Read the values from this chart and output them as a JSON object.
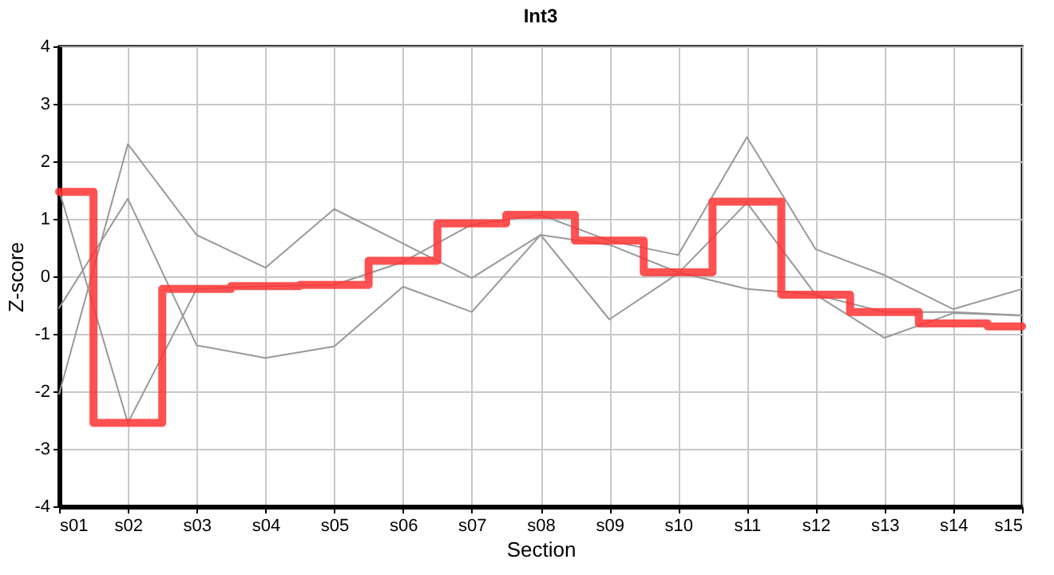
{
  "chart_data": {
    "type": "line",
    "title": "Int3",
    "xlabel": "Section",
    "ylabel": "Z-score",
    "categories": [
      "s01",
      "s02",
      "s03",
      "s04",
      "s05",
      "s06",
      "s07",
      "s08",
      "s09",
      "s10",
      "s11",
      "s12",
      "s13",
      "s14",
      "s15"
    ],
    "series": [
      {
        "color": "#999999",
        "values": [
          1.5,
          -2.55,
          -0.22,
          -0.17,
          -0.15,
          0.25,
          0.9,
          1.07,
          0.62,
          0.37,
          2.42,
          0.47,
          0.02,
          -0.57,
          -0.22
        ]
      },
      {
        "color": "#999999",
        "values": [
          -2.05,
          2.3,
          0.72,
          0.15,
          1.17,
          0.57,
          -0.03,
          0.72,
          -0.75,
          0.05,
          1.28,
          -0.32,
          -1.07,
          -0.64,
          -0.68
        ]
      },
      {
        "color": "#999999",
        "values": [
          -0.55,
          1.35,
          -1.2,
          -1.42,
          -1.22,
          -0.18,
          -0.62,
          0.72,
          0.55,
          0.07,
          -0.22,
          -0.32,
          -0.62,
          -0.62,
          -0.68
        ]
      },
      {
        "type": "step",
        "color": "#ff3333",
        "values": [
          1.47,
          -2.55,
          -0.22,
          -0.17,
          -0.15,
          0.27,
          0.92,
          1.07,
          0.62,
          0.07,
          1.3,
          -0.32,
          -0.62,
          -0.82,
          -0.87
        ]
      }
    ],
    "ylim": [
      -4,
      4
    ],
    "yticks": [
      -4,
      -3,
      -2,
      -1,
      0,
      1,
      2,
      3,
      4
    ],
    "grid": true
  }
}
